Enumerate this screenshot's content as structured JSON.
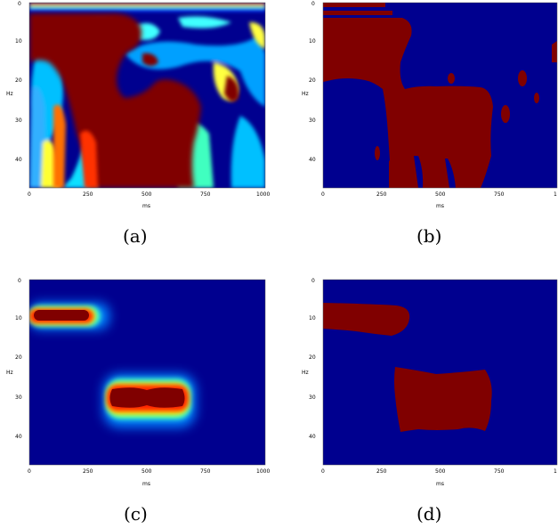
{
  "colors": {
    "dark_red": "#800000",
    "dark_blue": "#00008f",
    "cyan": "#10e0ff",
    "yellow": "#ffff40",
    "red": "#ff2000",
    "blue": "#0020ff"
  },
  "chart_data": [
    {
      "type": "heatmap",
      "caption": "(a)",
      "xlabel": "ms",
      "ylabel": "Hz",
      "xlim": [
        0,
        1000
      ],
      "ylim": [
        47,
        0
      ],
      "xticks": [
        "0",
        "250",
        "500",
        "750",
        "1000"
      ],
      "yticks": [
        "0",
        "10",
        "20",
        "30",
        "40"
      ],
      "colormap": "jet",
      "content": "continuous time-frequency power map; dark-red saturated region covering roughly 0-750 ms at 3-47 Hz with blue/cyan/yellow ripples elsewhere"
    },
    {
      "type": "heatmap",
      "caption": "(b)",
      "xlabel": "ms",
      "ylabel": "Hz",
      "xlim": [
        0,
        1000
      ],
      "ylim": [
        47,
        0
      ],
      "xticks": [
        "0",
        "250",
        "500",
        "750",
        "1"
      ],
      "yticks": [
        "0",
        "10",
        "20",
        "30",
        "40"
      ],
      "colormap": "binary red/blue",
      "content": "thresholded mask of (a)"
    },
    {
      "type": "heatmap",
      "caption": "(c)",
      "xlabel": "ms",
      "ylabel": "Hz",
      "xlim": [
        0,
        1000
      ],
      "ylim": [
        47,
        0
      ],
      "xticks": [
        "0",
        "250",
        "500",
        "750",
        "1000"
      ],
      "yticks": [
        "0",
        "10",
        "20",
        "30",
        "40"
      ],
      "colormap": "jet",
      "blobs": [
        {
          "t_center": 130,
          "t_width": 290,
          "f_center": 9.5,
          "f_width": 5
        },
        {
          "t_center": 505,
          "t_width": 340,
          "f_center": 29,
          "f_width": 8
        }
      ]
    },
    {
      "type": "heatmap",
      "caption": "(d)",
      "xlabel": "ms",
      "ylabel": "Hz",
      "xlim": [
        0,
        1000
      ],
      "ylim": [
        47,
        0
      ],
      "xticks": [
        "0",
        "250",
        "500",
        "750",
        "1"
      ],
      "yticks": [
        "0",
        "10",
        "20",
        "30",
        "40"
      ],
      "colormap": "binary red/blue",
      "regions": [
        {
          "t_range": [
            0,
            370
          ],
          "f_range": [
            6,
            14
          ]
        },
        {
          "t_range": [
            310,
            700
          ],
          "f_range": [
            22,
            39
          ]
        }
      ]
    }
  ]
}
